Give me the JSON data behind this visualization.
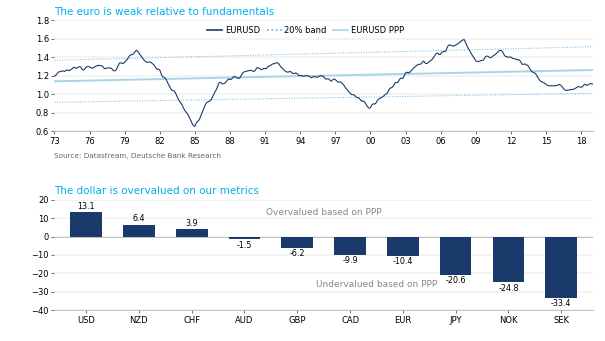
{
  "title1": "The euro is weak relative to fundamentals",
  "title2": "The dollar is overvalued on our metrics",
  "source_text": "Source: Datastream, Deutsche Bank Research",
  "title_color": "#00AEEF",
  "line_color_eurusd": "#1a3a6b",
  "line_color_band": "#5bb8f5",
  "line_color_ppp": "#a8d4e8",
  "bar_color": "#1a3a6b",
  "bar_categories": [
    "USD",
    "NZD",
    "CHF",
    "AUD",
    "GBP",
    "CAD",
    "EUR",
    "JPY",
    "NOK",
    "SEK"
  ],
  "bar_values": [
    13.1,
    6.4,
    3.9,
    -1.5,
    -6.2,
    -9.9,
    -10.4,
    -20.6,
    -24.8,
    -33.4
  ],
  "bar_ylim": [
    -40,
    20
  ],
  "bar_yticks": [
    -40,
    -30,
    -20,
    -10,
    0,
    10,
    20
  ],
  "xtick_labels": [
    "73",
    "76",
    "79",
    "82",
    "85",
    "88",
    "91",
    "94",
    "97",
    "00",
    "03",
    "06",
    "09",
    "12",
    "15",
    "18"
  ],
  "line_ylim": [
    0.6,
    1.8
  ],
  "line_yticks": [
    0.6,
    0.8,
    1.0,
    1.2,
    1.4,
    1.6,
    1.8
  ],
  "overvalued_text": "Overvalued based on PPP",
  "undervalued_text": "Undervalued based on PPP",
  "legend_labels": [
    "EURUSD",
    "20% band",
    "EURUSD PPP"
  ]
}
